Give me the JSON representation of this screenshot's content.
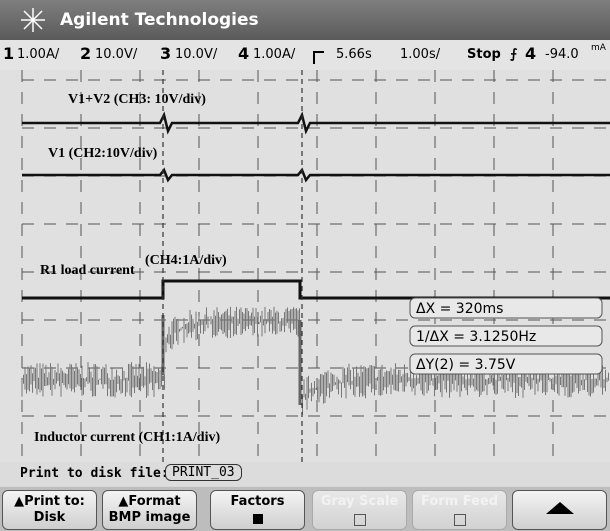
{
  "header": {
    "title": "Agilent Technologies"
  },
  "status": {
    "channels": [
      {
        "number": "1",
        "scale": "1.00A/"
      },
      {
        "number": "2",
        "scale": "10.0V/"
      },
      {
        "number": "3",
        "scale": "10.0V/"
      },
      {
        "number": "4",
        "scale": "1.00A/"
      }
    ],
    "time_position": "5.66s",
    "time_scale": "1.00s/",
    "run_state": "Stop",
    "trigger_source": "4",
    "trigger_level": "-94.0",
    "trigger_unit": "mA"
  },
  "annotations": [
    {
      "text": "V1+V2 (CH3: 10V/div)"
    },
    {
      "text": "V1 (CH2:10V/div)"
    },
    {
      "text": "R1 load current"
    },
    {
      "text": "(CH4:1A/div)"
    },
    {
      "text": "Inductor current (CH1:1A/div)"
    }
  ],
  "measurements": [
    "ΔX = 320ms",
    "1/ΔX = 3.1250Hz",
    "ΔY(2) = 3.75V"
  ],
  "file": {
    "label": "Print to disk file:",
    "name": "PRINT_03"
  },
  "softkeys": [
    {
      "line1": "Print to:",
      "line2": "Disk"
    },
    {
      "line1": "Format",
      "line2": "BMP image"
    },
    {
      "line1": "Factors"
    },
    {
      "line1": "Gray Scale"
    },
    {
      "line1": "Form Feed"
    }
  ]
}
